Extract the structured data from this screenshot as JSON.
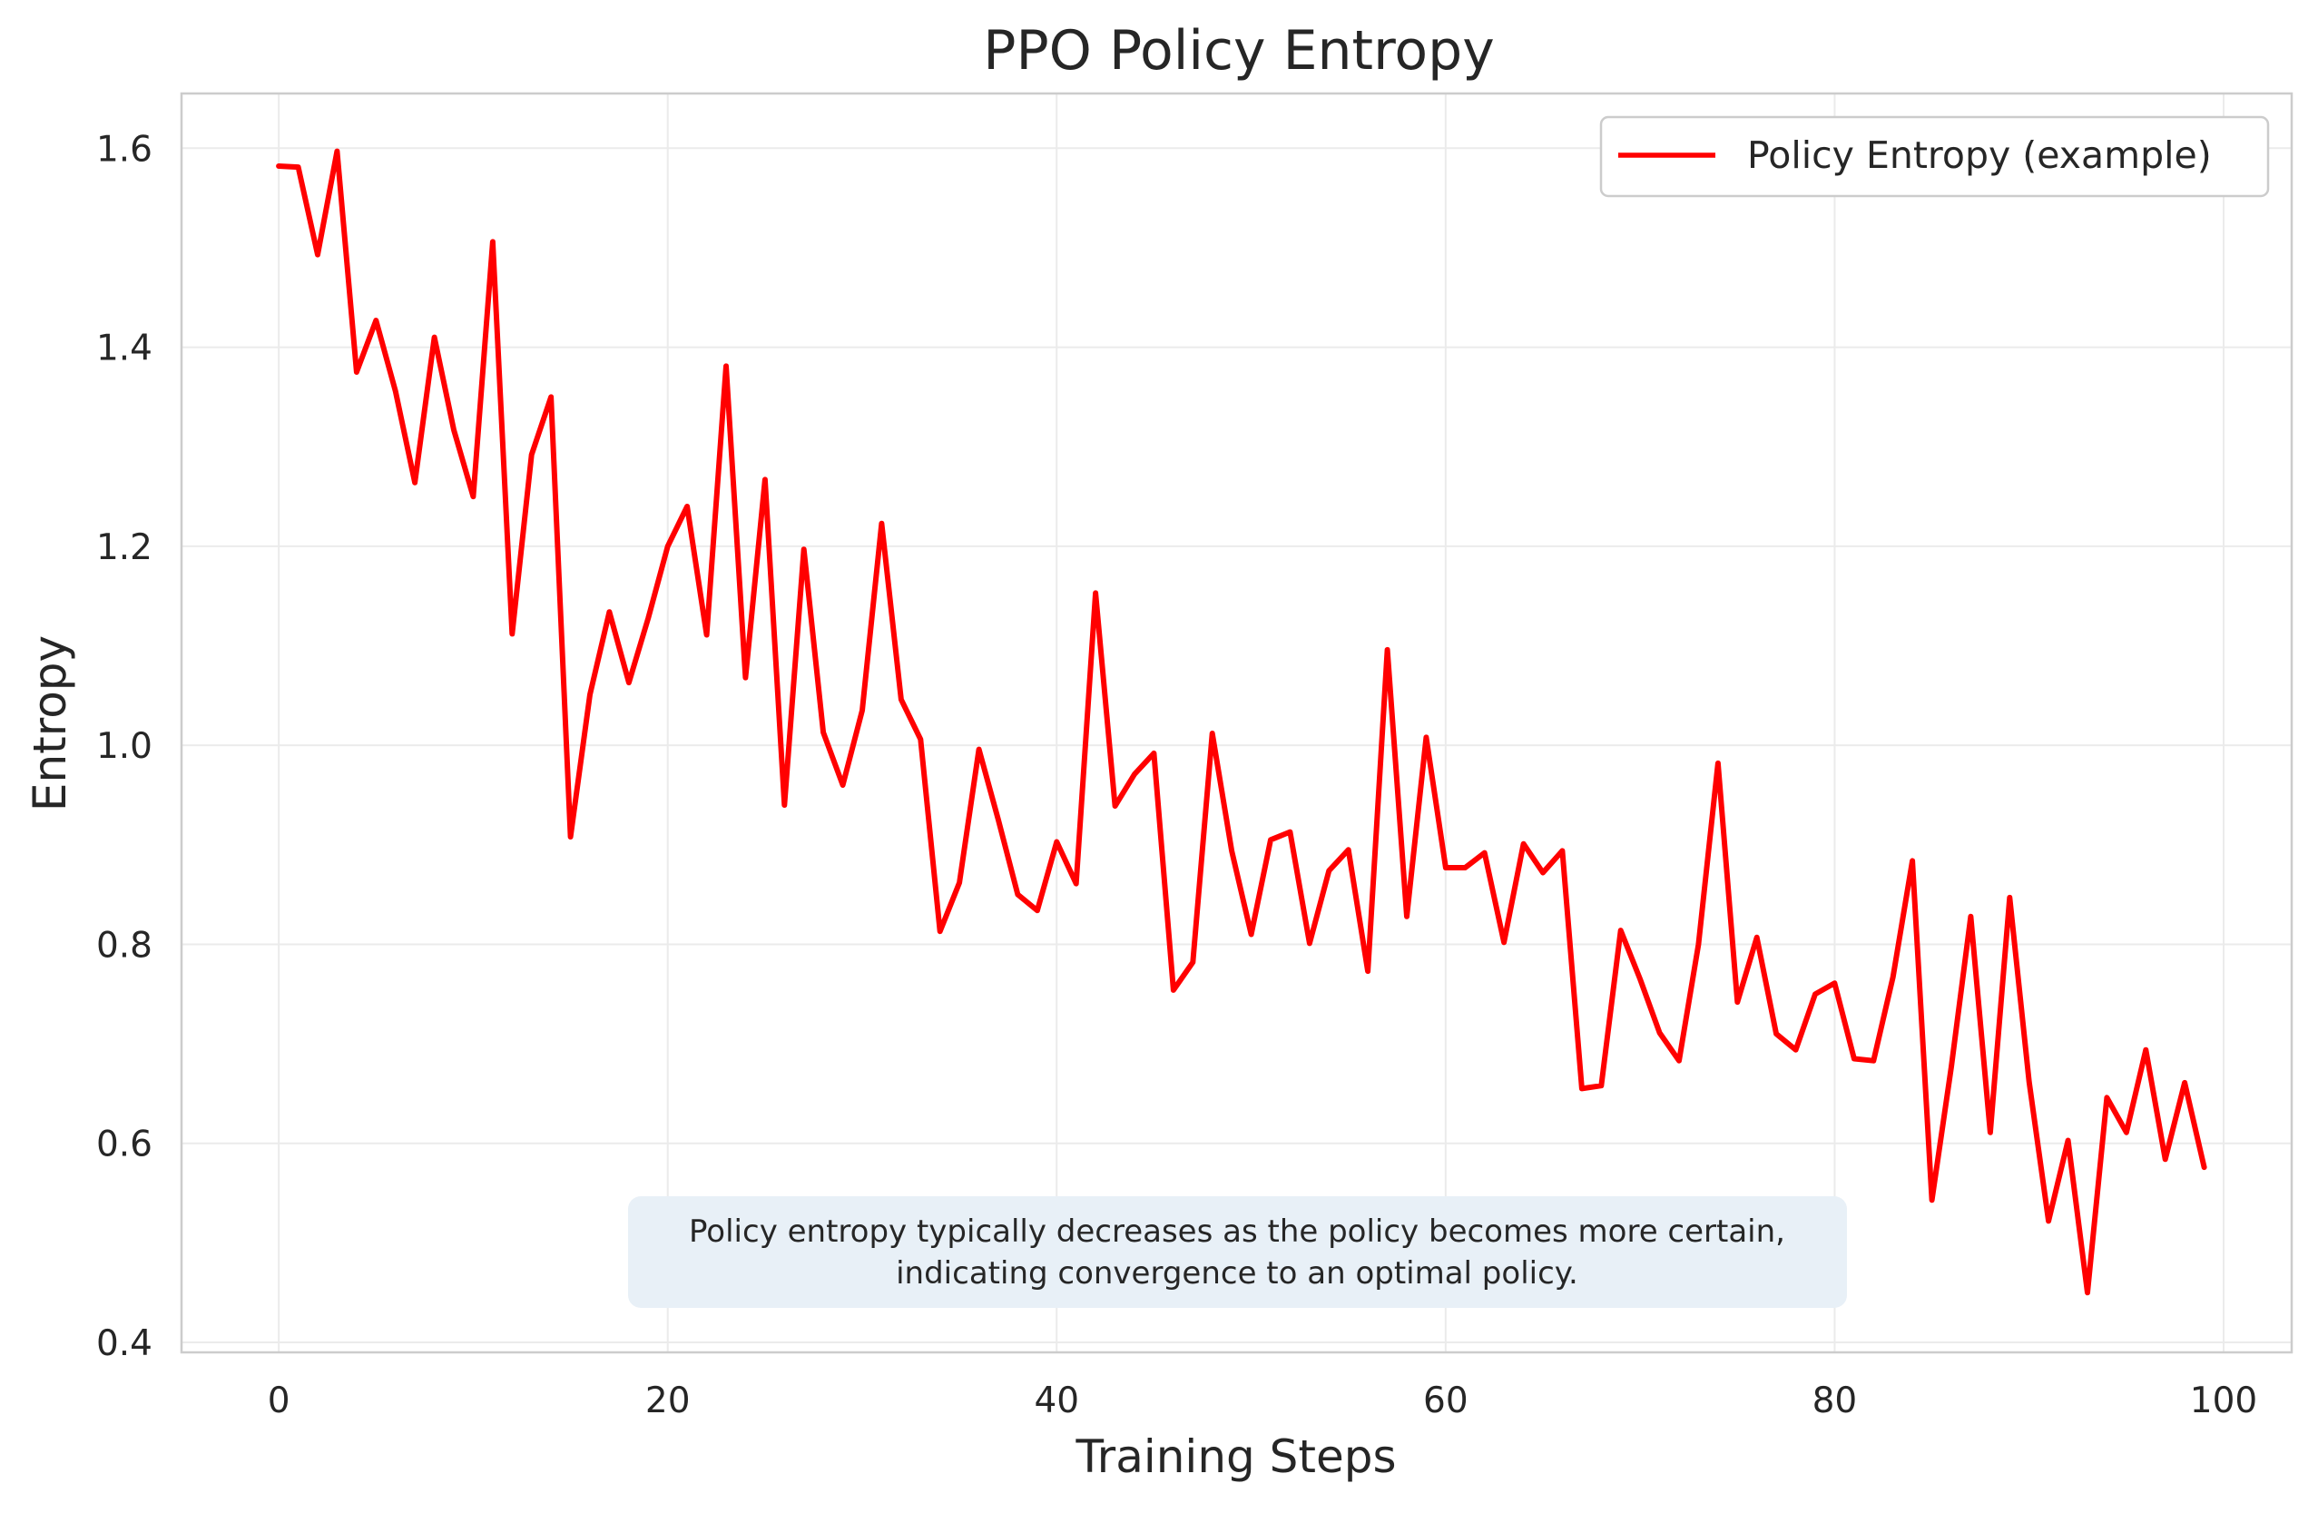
{
  "chart_data": {
    "type": "line",
    "title": "PPO Policy Entropy",
    "xlabel": "Training Steps",
    "ylabel": "Entropy",
    "xlim": [
      -5,
      103.5
    ],
    "ylim": [
      0.39,
      1.655
    ],
    "xticks": [
      0,
      20,
      40,
      60,
      80,
      100
    ],
    "xtick_labels": [
      "0",
      "20",
      "40",
      "60",
      "80",
      "100"
    ],
    "yticks": [
      0.4,
      0.6,
      0.8,
      1.0,
      1.2,
      1.4,
      1.6
    ],
    "ytick_labels": [
      "0.4",
      "0.6",
      "0.8",
      "1.0",
      "1.2",
      "1.4",
      "1.6"
    ],
    "grid": true,
    "legend_position": "top-right",
    "annotation": [
      "Policy entropy typically decreases as the policy becomes more certain,",
      "indicating convergence to an optimal policy."
    ],
    "series": [
      {
        "name": "Policy Entropy (example)",
        "color": "#ff0000",
        "x": [
          0,
          1,
          2,
          3,
          4,
          5,
          6,
          7,
          8,
          9,
          10,
          11,
          12,
          13,
          14,
          15,
          16,
          17,
          18,
          19,
          20,
          21,
          22,
          23,
          24,
          25,
          26,
          27,
          28,
          29,
          30,
          31,
          32,
          33,
          34,
          35,
          36,
          37,
          38,
          39,
          40,
          41,
          42,
          43,
          44,
          45,
          46,
          47,
          48,
          49,
          50,
          51,
          52,
          53,
          54,
          55,
          56,
          57,
          58,
          59,
          60,
          61,
          62,
          63,
          64,
          65,
          66,
          67,
          68,
          69,
          70,
          71,
          72,
          73,
          74,
          75,
          76,
          77,
          78,
          79,
          80,
          81,
          82,
          83,
          84,
          85,
          86,
          87,
          88,
          89,
          90,
          91,
          92,
          93,
          94,
          95,
          96,
          97,
          98,
          99
        ],
        "values": [
          1.582,
          1.581,
          1.493,
          1.597,
          1.375,
          1.427,
          1.356,
          1.264,
          1.41,
          1.317,
          1.25,
          1.506,
          1.112,
          1.292,
          1.35,
          0.908,
          1.051,
          1.134,
          1.063,
          1.128,
          1.2,
          1.24,
          1.111,
          1.381,
          1.068,
          1.267,
          0.94,
          1.197,
          1.013,
          0.96,
          1.035,
          1.223,
          1.046,
          1.006,
          0.813,
          0.862,
          0.996,
          0.925,
          0.85,
          0.834,
          0.903,
          0.861,
          1.153,
          0.939,
          0.971,
          0.992,
          0.754,
          0.782,
          1.012,
          0.894,
          0.81,
          0.905,
          0.913,
          0.801,
          0.874,
          0.895,
          0.773,
          1.096,
          0.828,
          1.008,
          0.877,
          0.877,
          0.892,
          0.802,
          0.901,
          0.872,
          0.894,
          0.655,
          0.658,
          0.814,
          0.765,
          0.711,
          0.683,
          0.8,
          0.982,
          0.742,
          0.807,
          0.71,
          0.694,
          0.75,
          0.761,
          0.685,
          0.683,
          0.767,
          0.884,
          0.543,
          0.677,
          0.828,
          0.611,
          0.847,
          0.662,
          0.522,
          0.603,
          0.45,
          0.646,
          0.611,
          0.694,
          0.584,
          0.661,
          0.576
        ]
      }
    ]
  }
}
